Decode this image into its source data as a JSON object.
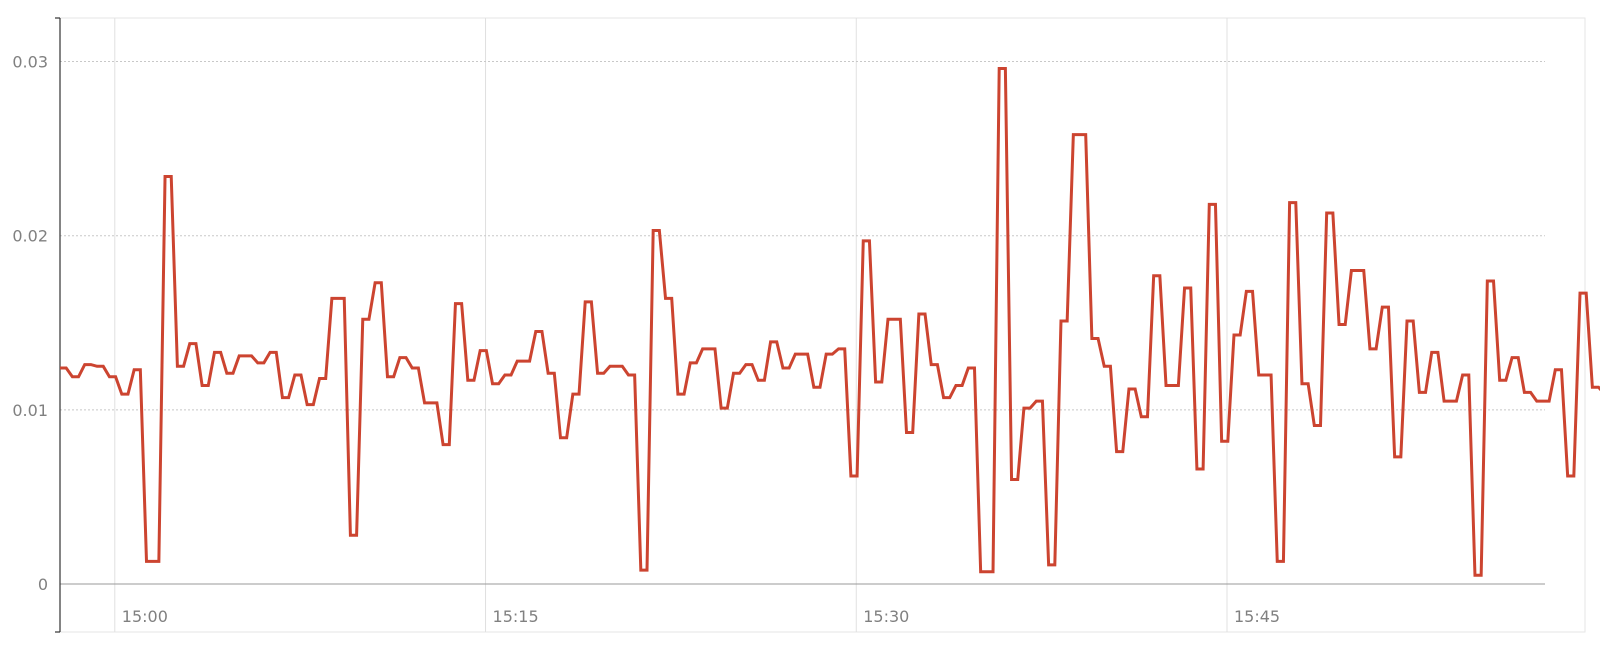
{
  "chart_data": {
    "type": "line",
    "title": "",
    "xlabel": "",
    "ylabel": "",
    "ylim": [
      0,
      0.0325
    ],
    "x_range": [
      "14:57:47",
      "15:57:52"
    ],
    "yticks": [
      {
        "value": 0,
        "label": "0"
      },
      {
        "value": 0.01,
        "label": "0.01"
      },
      {
        "value": 0.02,
        "label": "0.02"
      },
      {
        "value": 0.03,
        "label": "0.03"
      }
    ],
    "xticks": [
      {
        "time": "15:00",
        "label": "15:00"
      },
      {
        "time": "15:15",
        "label": "15:15"
      },
      {
        "time": "15:30",
        "label": "15:30"
      },
      {
        "time": "15:45",
        "label": "15:45"
      }
    ],
    "grid": true,
    "legend": "none",
    "colors": {
      "series": "#cc4430"
    },
    "series": [
      {
        "x_start": "14:57:47",
        "x_step_seconds": 15,
        "values": [
          0.0124,
          0.0124,
          0.0119,
          0.0119,
          0.0126,
          0.0126,
          0.0125,
          0.0125,
          0.0119,
          0.0119,
          0.0109,
          0.0109,
          0.0123,
          0.0123,
          0.0013,
          0.0013,
          0.0013,
          0.0234,
          0.0234,
          0.0125,
          0.0125,
          0.0138,
          0.0138,
          0.0114,
          0.0114,
          0.0133,
          0.0133,
          0.0121,
          0.0121,
          0.0131,
          0.0131,
          0.0131,
          0.0127,
          0.0127,
          0.0133,
          0.0133,
          0.0107,
          0.0107,
          0.012,
          0.012,
          0.0103,
          0.0103,
          0.0118,
          0.0118,
          0.0164,
          0.0164,
          0.0164,
          0.0028,
          0.0028,
          0.0152,
          0.0152,
          0.0173,
          0.0173,
          0.0119,
          0.0119,
          0.013,
          0.013,
          0.0124,
          0.0124,
          0.0104,
          0.0104,
          0.0104,
          0.008,
          0.008,
          0.0161,
          0.0161,
          0.0117,
          0.0117,
          0.0134,
          0.0134,
          0.0115,
          0.0115,
          0.012,
          0.012,
          0.0128,
          0.0128,
          0.0128,
          0.0145,
          0.0145,
          0.0121,
          0.0121,
          0.0084,
          0.0084,
          0.0109,
          0.0109,
          0.0162,
          0.0162,
          0.0121,
          0.0121,
          0.0125,
          0.0125,
          0.0125,
          0.012,
          0.012,
          0.0008,
          0.0008,
          0.0203,
          0.0203,
          0.0164,
          0.0164,
          0.0109,
          0.0109,
          0.0127,
          0.0127,
          0.0135,
          0.0135,
          0.0135,
          0.0101,
          0.0101,
          0.0121,
          0.0121,
          0.0126,
          0.0126,
          0.0117,
          0.0117,
          0.0139,
          0.0139,
          0.0124,
          0.0124,
          0.0132,
          0.0132,
          0.0132,
          0.0113,
          0.0113,
          0.0132,
          0.0132,
          0.0135,
          0.0135,
          0.0062,
          0.0062,
          0.0197,
          0.0197,
          0.0116,
          0.0116,
          0.0152,
          0.0152,
          0.0152,
          0.0087,
          0.0087,
          0.0155,
          0.0155,
          0.0126,
          0.0126,
          0.0107,
          0.0107,
          0.0114,
          0.0114,
          0.0124,
          0.0124,
          0.0007,
          0.0007,
          0.0007,
          0.0296,
          0.0296,
          0.006,
          0.006,
          0.0101,
          0.0101,
          0.0105,
          0.0105,
          0.0011,
          0.0011,
          0.0151,
          0.0151,
          0.0258,
          0.0258,
          0.0258,
          0.0141,
          0.0141,
          0.0125,
          0.0125,
          0.0076,
          0.0076,
          0.0112,
          0.0112,
          0.0096,
          0.0096,
          0.0177,
          0.0177,
          0.0114,
          0.0114,
          0.0114,
          0.017,
          0.017,
          0.0066,
          0.0066,
          0.0218,
          0.0218,
          0.0082,
          0.0082,
          0.0143,
          0.0143,
          0.0168,
          0.0168,
          0.012,
          0.012,
          0.012,
          0.0013,
          0.0013,
          0.0219,
          0.0219,
          0.0115,
          0.0115,
          0.0091,
          0.0091,
          0.0213,
          0.0213,
          0.0149,
          0.0149,
          0.018,
          0.018,
          0.018,
          0.0135,
          0.0135,
          0.0159,
          0.0159,
          0.0073,
          0.0073,
          0.0151,
          0.0151,
          0.011,
          0.011,
          0.0133,
          0.0133,
          0.0105,
          0.0105,
          0.0105,
          0.012,
          0.012,
          0.0005,
          0.0005,
          0.0174,
          0.0174,
          0.0117,
          0.0117,
          0.013,
          0.013,
          0.011,
          0.011,
          0.0105,
          0.0105,
          0.0105,
          0.0123,
          0.0123,
          0.0062,
          0.0062,
          0.0167,
          0.0167,
          0.0113,
          0.0113,
          0.0109,
          0.0109,
          0.0072,
          0.0072,
          0.016,
          0.016,
          0.016,
          0.0113
        ]
      }
    ]
  }
}
